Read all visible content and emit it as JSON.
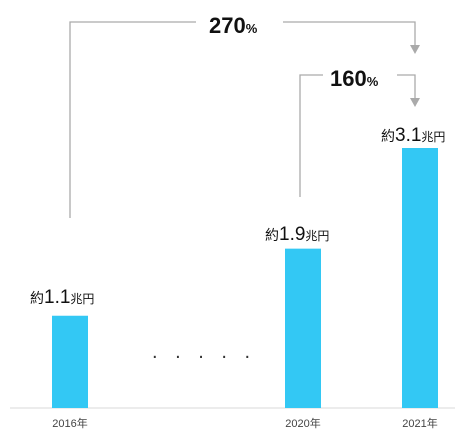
{
  "chart_data": {
    "type": "bar",
    "categories": [
      "2016年",
      "2020年",
      "2021年"
    ],
    "values": [
      1.1,
      1.9,
      3.1
    ],
    "value_labels": [
      {
        "prefix": "約",
        "number": "1.1",
        "unit": "兆円"
      },
      {
        "prefix": "約",
        "number": "1.9",
        "unit": "兆円"
      },
      {
        "prefix": "約",
        "number": "3.1",
        "unit": "兆円"
      }
    ],
    "gap_marker": ". . . . .",
    "growth": [
      {
        "from": "2016年",
        "to": "2021年",
        "number": "270",
        "unit": "%"
      },
      {
        "from": "2020年",
        "to": "2021年",
        "number": "160",
        "unit": "%"
      }
    ],
    "ylim": [
      0,
      3.1
    ],
    "grid": false,
    "colors": {
      "bar": "#33C8F4",
      "bracket": "#aaaaaa"
    }
  }
}
